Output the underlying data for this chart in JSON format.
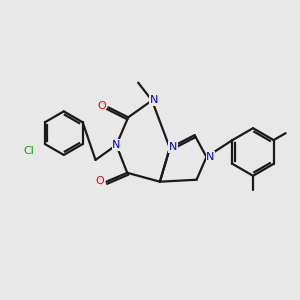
{
  "bg_color": "#e8e8e8",
  "atom_colors": {
    "N": "#0000ee",
    "O": "#ff0000",
    "Cl": "#00aa00",
    "C": "#1a1a1a"
  },
  "bond_color": "#1a1a1a",
  "bond_width": 1.6,
  "fig_size": [
    3.0,
    3.0
  ],
  "dpi": 100
}
